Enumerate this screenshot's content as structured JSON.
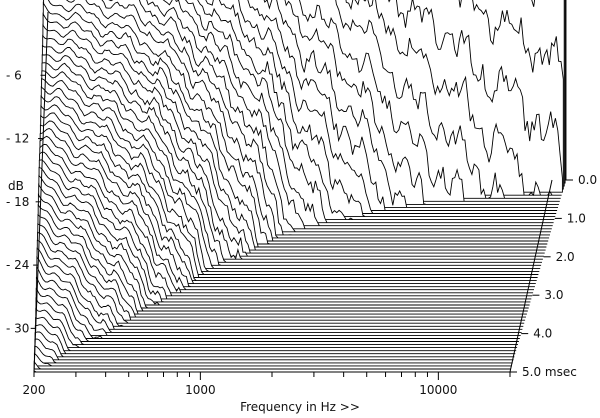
{
  "chart_data": {
    "type": "waterfall",
    "title": "",
    "xlabel": "Frequency in Hz >>",
    "ylabel": "dB",
    "zlabel": "msec",
    "x_scale": "log",
    "x_range": [
      200,
      20000
    ],
    "x_tick_labels": [
      {
        "value": 200,
        "label": "200"
      },
      {
        "value": 1000,
        "label": "1000"
      },
      {
        "value": 10000,
        "label": "10000"
      }
    ],
    "y_range": [
      -33,
      0
    ],
    "y_ticks": [
      {
        "value": -6,
        "label": "- 6"
      },
      {
        "value": -12,
        "label": "- 12"
      },
      {
        "value": -18,
        "label": "- 18"
      },
      {
        "value": -24,
        "label": "- 24"
      },
      {
        "value": -30,
        "label": "- 30"
      }
    ],
    "time_range": [
      0,
      5.0
    ],
    "time_ticks": [
      {
        "value": 0.0,
        "label": "0.0"
      },
      {
        "value": 1.0,
        "label": "1.0"
      },
      {
        "value": 2.0,
        "label": "2.0"
      },
      {
        "value": 3.0,
        "label": "3.0"
      },
      {
        "value": 4.0,
        "label": "4.0"
      },
      {
        "value": 5.0,
        "label": "5.0 msec"
      }
    ],
    "slice_count": 64,
    "initial_response": {
      "freq": [
        200,
        300,
        500,
        700,
        1000,
        1500,
        2000,
        3000,
        5000,
        7000,
        10000,
        15000,
        20000
      ],
      "db": [
        -0.5,
        -0.3,
        0,
        -0.2,
        -0.3,
        -0.6,
        -1.5,
        -2.5,
        -3,
        -2.5,
        -3,
        -2,
        -1
      ]
    },
    "decay_milestones": [
      {
        "freq": 200,
        "time_to_floor_ms": 5.0
      },
      {
        "freq": 500,
        "time_to_floor_ms": 3.6
      },
      {
        "freq": 1000,
        "time_to_floor_ms": 2.3
      },
      {
        "freq": 2000,
        "time_to_floor_ms": 1.3
      },
      {
        "freq": 5000,
        "time_to_floor_ms": 0.7
      },
      {
        "freq": 10000,
        "time_to_floor_ms": 0.5
      },
      {
        "freq": 20000,
        "time_to_floor_ms": 0.35
      }
    ],
    "noise_floor_db": -33
  }
}
